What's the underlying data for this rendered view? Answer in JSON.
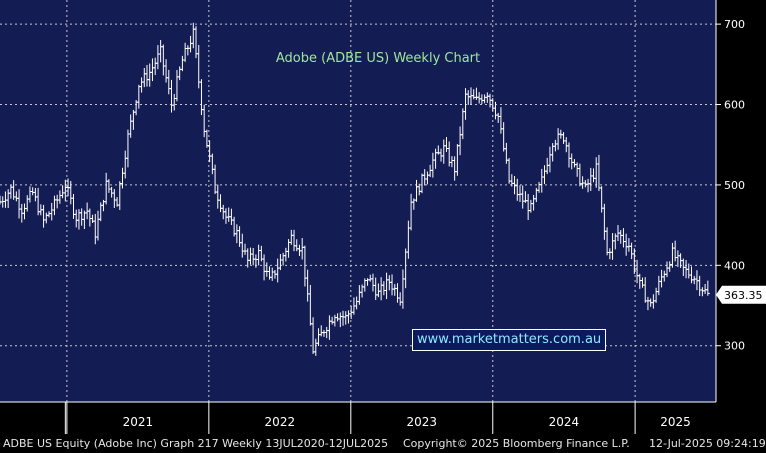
{
  "colors": {
    "plot_bg": "#141c54",
    "axis_bg": "#000000",
    "grid": "#c8c8c8",
    "bars": "#ffffff",
    "title": "#9ee89e",
    "last_price_bg": "#ffffff",
    "last_price_text": "#000000",
    "watermark_text": "#8fe8ff"
  },
  "footer": {
    "left": "ADBE US Equity (Adobe Inc) Graph 217  Weekly 13JUL2020-12JUL2025",
    "center": "Copyright© 2025 Bloomberg Finance L.P.",
    "right": "12-Jul-2025 09:24:19"
  },
  "watermark": "www.marketmatters.com.au",
  "chart_data": {
    "type": "ohlc",
    "title": "Adobe (ADBE US) Weekly Chart",
    "y_axis_position": "right",
    "ylim": [
      230,
      730
    ],
    "yticks": [
      300,
      400,
      500,
      600,
      700
    ],
    "x_tick_labels": [
      "2021",
      "2022",
      "2023",
      "2024",
      "2025"
    ],
    "last_price": "363.35",
    "grid": true,
    "series": [
      {
        "points": [
          [
            "2020-07-13",
            479
          ],
          [
            "2020-08-10",
            495
          ],
          [
            "2020-09-07",
            470
          ],
          [
            "2020-10-05",
            490
          ],
          [
            "2020-11-02",
            455
          ],
          [
            "2020-11-30",
            475
          ],
          [
            "2020-12-28",
            500
          ],
          [
            "2021-01-25",
            460
          ],
          [
            "2021-02-22",
            468
          ],
          [
            "2021-03-15",
            440
          ],
          [
            "2021-04-12",
            500
          ],
          [
            "2021-05-10",
            480
          ],
          [
            "2021-06-07",
            560
          ],
          [
            "2021-07-05",
            625
          ],
          [
            "2021-08-02",
            640
          ],
          [
            "2021-08-30",
            665
          ],
          [
            "2021-09-27",
            600
          ],
          [
            "2021-10-25",
            655
          ],
          [
            "2021-11-22",
            688
          ],
          [
            "2021-12-20",
            570
          ],
          [
            "2022-01-17",
            495
          ],
          [
            "2022-02-14",
            460
          ],
          [
            "2022-03-14",
            440
          ],
          [
            "2022-04-11",
            405
          ],
          [
            "2022-05-09",
            415
          ],
          [
            "2022-06-06",
            380
          ],
          [
            "2022-07-04",
            405
          ],
          [
            "2022-08-01",
            435
          ],
          [
            "2022-08-29",
            420
          ],
          [
            "2022-09-26",
            295
          ],
          [
            "2022-10-24",
            320
          ],
          [
            "2022-11-21",
            340
          ],
          [
            "2022-12-19",
            335
          ],
          [
            "2023-01-16",
            355
          ],
          [
            "2023-02-13",
            385
          ],
          [
            "2023-03-13",
            365
          ],
          [
            "2023-04-10",
            380
          ],
          [
            "2023-05-08",
            360
          ],
          [
            "2023-06-05",
            480
          ],
          [
            "2023-07-03",
            505
          ],
          [
            "2023-07-31",
            530
          ],
          [
            "2023-08-28",
            545
          ],
          [
            "2023-09-25",
            520
          ],
          [
            "2023-10-23",
            610
          ],
          [
            "2023-11-20",
            605
          ],
          [
            "2023-12-18",
            615
          ],
          [
            "2024-01-15",
            585
          ],
          [
            "2024-02-12",
            505
          ],
          [
            "2024-03-11",
            485
          ],
          [
            "2024-04-08",
            470
          ],
          [
            "2024-05-06",
            505
          ],
          [
            "2024-06-03",
            555
          ],
          [
            "2024-07-01",
            560
          ],
          [
            "2024-07-29",
            520
          ],
          [
            "2024-08-26",
            495
          ],
          [
            "2024-09-23",
            520
          ],
          [
            "2024-10-21",
            415
          ],
          [
            "2024-11-18",
            440
          ],
          [
            "2024-12-16",
            425
          ],
          [
            "2025-01-13",
            375
          ],
          [
            "2025-02-10",
            350
          ],
          [
            "2025-03-10",
            385
          ],
          [
            "2025-04-07",
            415
          ],
          [
            "2025-05-05",
            395
          ],
          [
            "2025-06-02",
            385
          ],
          [
            "2025-07-07",
            363
          ]
        ]
      }
    ]
  }
}
